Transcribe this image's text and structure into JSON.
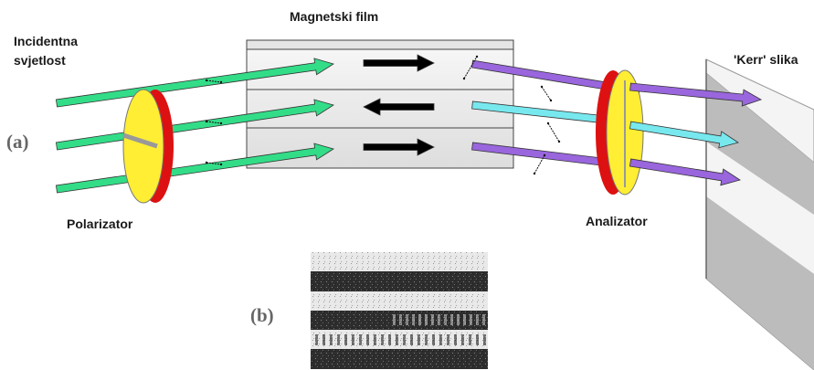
{
  "labels": {
    "incident_line1": "Incidentna",
    "incident_line2": "svjetlost",
    "magnetic_film": "Magnetski film",
    "kerr_image": "'Kerr' slika",
    "polarizer": "Polarizator",
    "analyzer": "Analizator",
    "panel_a": "(a)",
    "panel_b": "(b)"
  },
  "colors": {
    "incident_beam": "#33dd88",
    "reflected_beam_up": "#9966dd",
    "reflected_beam_down": "#77e8ee",
    "magnetization_arrow": "#000000",
    "polarizer_face": "#ffee33",
    "polarizer_rim": "#dd1111",
    "film_fill": "#ececec",
    "screen_light": "#f4f4f4",
    "screen_dark": "#bcbcbc"
  },
  "film_layers": [
    {
      "magnetization": "right"
    },
    {
      "magnetization": "left"
    },
    {
      "magnetization": "right"
    }
  ],
  "kerr_image_bands": [
    "light",
    "dark",
    "light",
    "dark",
    "light",
    "dark"
  ]
}
